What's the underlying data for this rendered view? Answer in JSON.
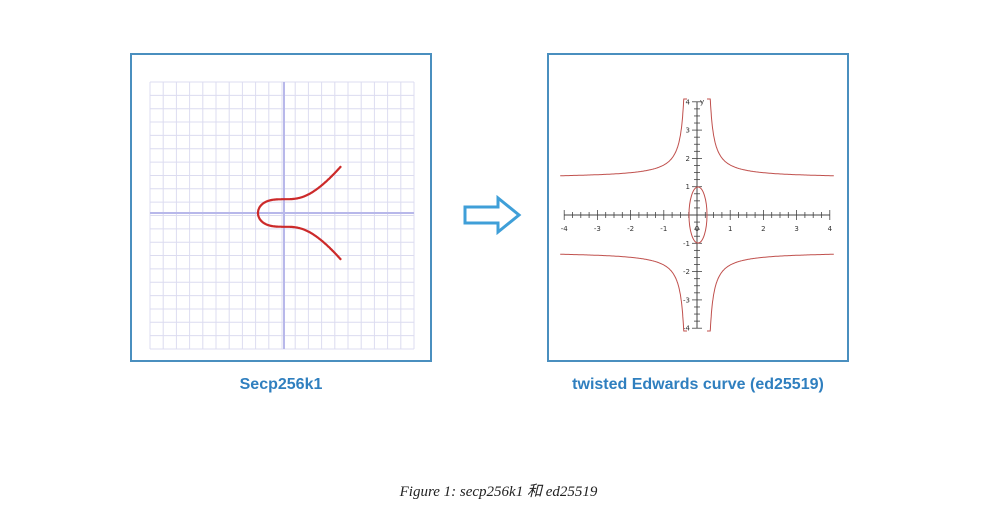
{
  "figure": {
    "left_label": "Secp256k1",
    "right_label": "twisted Edwards curve (ed25519)",
    "caption": "Figure 1: secp256k1 和 ed25519"
  },
  "colors": {
    "panel_border": "#4a8fbf",
    "label": "#2f7fbf",
    "secp_curve": "#cc2a2a",
    "edwards_curve": "#c0504d",
    "grid": "#dcdcf0",
    "axis": "#b8b8ea"
  },
  "right_plot": {
    "x_ticks": [
      "-4",
      "-3",
      "-2",
      "-1",
      "0",
      "1",
      "2",
      "3",
      "4"
    ],
    "y_ticks": [
      "4",
      "3",
      "2",
      "1",
      "-1",
      "-2",
      "-3",
      "-4"
    ],
    "y_axis_label": "y"
  },
  "icons": {
    "arrow": "right-arrow-icon"
  }
}
